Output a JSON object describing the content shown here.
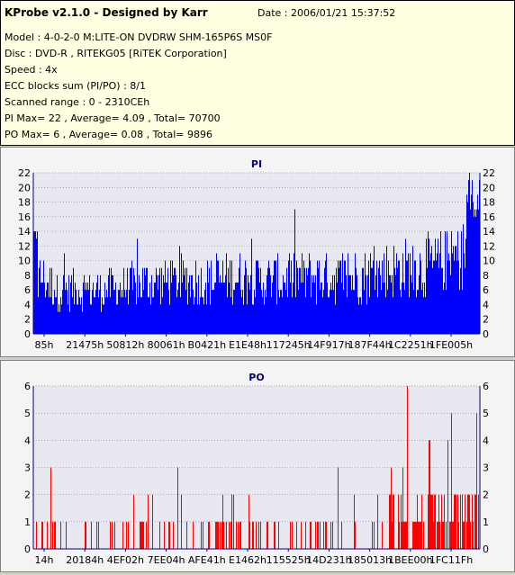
{
  "info": {
    "title": "KProbe v2.1.0 - Designed by Karr",
    "date": "Date : 2006/01/21 15:37:52",
    "model": "Model : 4-0-2-0 M:LITE-ON DVDRW SHM-165P6S MS0F",
    "disc": "Disc : DVD-R , RITEKG05 [RiTEK Corporation]",
    "speed": "Speed : 4x",
    "ecc": "ECC blocks sum (PI/PO) : 8/1",
    "scanned": "Scanned range : 0 - 2310CEh",
    "pi_stats": "PI Max= 22 , Average= 4.09 , Total= 70700",
    "po_stats": "PO Max= 6 , Average= 0.08 , Total= 9896"
  },
  "colors": {
    "pi": "#0000ff",
    "po": "#ff0000",
    "plot_bg": "#e8e8f0",
    "grid": "#8080a0",
    "axis": "#000080"
  },
  "chart_data": [
    {
      "type": "bar",
      "title": "PI",
      "ylim": [
        0,
        22
      ],
      "yticks": [
        0,
        2,
        4,
        6,
        8,
        10,
        12,
        14,
        16,
        18,
        20,
        22
      ],
      "xticks": [
        "85h",
        "21475h",
        "50812h",
        "80061h",
        "B0421h",
        "E1E48h",
        "117245h",
        "14F917h",
        "187F44h",
        "1C2251h",
        "1FE005h"
      ],
      "profile": [
        [
          0,
          8
        ],
        [
          0.02,
          9
        ],
        [
          0.05,
          7
        ],
        [
          0.1,
          7
        ],
        [
          0.15,
          7
        ],
        [
          0.2,
          7.5
        ],
        [
          0.25,
          8
        ],
        [
          0.3,
          8.5
        ],
        [
          0.35,
          8.5
        ],
        [
          0.4,
          8.5
        ],
        [
          0.45,
          9
        ],
        [
          0.5,
          8.5
        ],
        [
          0.55,
          8.5
        ],
        [
          0.6,
          9
        ],
        [
          0.65,
          9
        ],
        [
          0.7,
          9
        ],
        [
          0.75,
          9.5
        ],
        [
          0.8,
          10
        ],
        [
          0.85,
          10.5
        ],
        [
          0.9,
          11
        ],
        [
          0.95,
          12
        ],
        [
          1.0,
          14
        ]
      ],
      "max": 22,
      "average": 4.09
    },
    {
      "type": "bar",
      "title": "PO",
      "ylim": [
        0,
        6
      ],
      "yticks": [
        0,
        1,
        2,
        3,
        4,
        5,
        6
      ],
      "xticks": [
        "14h",
        "20184h",
        "4EF02h",
        "7EE04h",
        "AFE41h",
        "E1462h",
        "115525h",
        "14D231h",
        "185013h",
        "1BEE00h",
        "1FC11Fh"
      ],
      "max": 6,
      "average": 0.08
    }
  ]
}
